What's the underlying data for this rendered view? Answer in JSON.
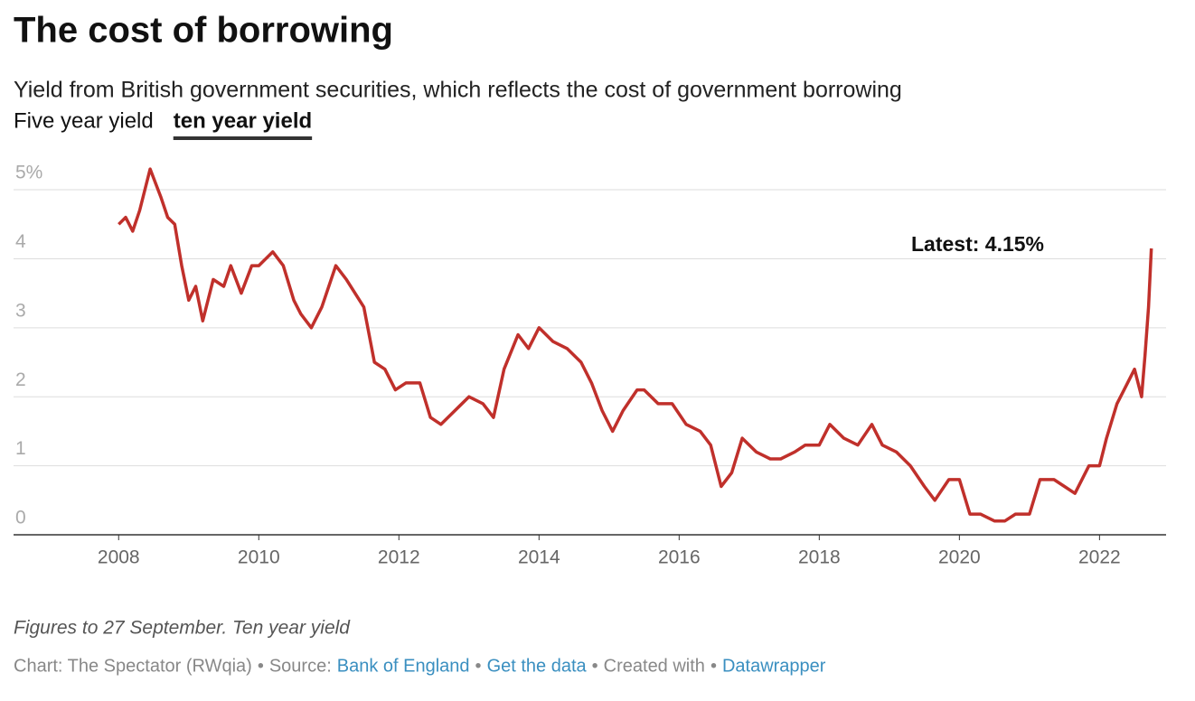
{
  "chart_data": {
    "type": "line",
    "title": "The cost of borrowing",
    "subtitle": "Yield from British government securities, which reflects the cost of government borrowing",
    "toggles": [
      {
        "label": "Five year yield",
        "active": false
      },
      {
        "label": "ten year yield",
        "active": true
      }
    ],
    "annotation": "Latest: 4.15%",
    "note": "Figures to 27 September. Ten year yield",
    "footer": {
      "separator": "•",
      "items": [
        {
          "text": "Chart: The Spectator (RWqia)",
          "link": false
        },
        {
          "text": "Source:",
          "link": false
        },
        {
          "text": "Bank of England",
          "link": true
        },
        {
          "text": "Get the data",
          "link": true
        },
        {
          "text": "Created with",
          "link": false
        },
        {
          "text": "Datawrapper",
          "link": true
        }
      ]
    },
    "xlim": [
      2006.5,
      2022.95
    ],
    "xticks": [
      2008,
      2010,
      2012,
      2014,
      2016,
      2018,
      2020,
      2022
    ],
    "ylim": [
      0,
      5.4
    ],
    "yticks": [
      0,
      1,
      2,
      3,
      4,
      {
        "value": 5,
        "label": "5%"
      }
    ],
    "grid": true,
    "x": [
      2008.0,
      2008.1,
      2008.2,
      2008.3,
      2008.45,
      2008.6,
      2008.7,
      2008.8,
      2008.9,
      2009.0,
      2009.1,
      2009.2,
      2009.35,
      2009.5,
      2009.6,
      2009.75,
      2009.9,
      2010.0,
      2010.2,
      2010.35,
      2010.5,
      2010.6,
      2010.75,
      2010.9,
      2011.1,
      2011.25,
      2011.5,
      2011.65,
      2011.8,
      2011.95,
      2012.1,
      2012.3,
      2012.45,
      2012.6,
      2012.8,
      2013.0,
      2013.2,
      2013.35,
      2013.5,
      2013.7,
      2013.85,
      2014.0,
      2014.2,
      2014.4,
      2014.6,
      2014.75,
      2014.9,
      2015.05,
      2015.2,
      2015.4,
      2015.5,
      2015.7,
      2015.9,
      2016.1,
      2016.3,
      2016.45,
      2016.6,
      2016.75,
      2016.9,
      2017.1,
      2017.3,
      2017.45,
      2017.65,
      2017.8,
      2018.0,
      2018.15,
      2018.35,
      2018.55,
      2018.75,
      2018.9,
      2019.1,
      2019.3,
      2019.5,
      2019.65,
      2019.85,
      2020.0,
      2020.15,
      2020.3,
      2020.5,
      2020.65,
      2020.8,
      2021.0,
      2021.15,
      2021.35,
      2021.5,
      2021.65,
      2021.85,
      2022.0,
      2022.1,
      2022.25,
      2022.4,
      2022.5,
      2022.6,
      2022.65,
      2022.7,
      2022.74
    ],
    "series": [
      {
        "name": "ten year yield",
        "color": "#c0302b",
        "values": [
          4.5,
          4.6,
          4.4,
          4.7,
          5.3,
          4.9,
          4.6,
          4.5,
          3.9,
          3.4,
          3.6,
          3.1,
          3.7,
          3.6,
          3.9,
          3.5,
          3.9,
          3.9,
          4.1,
          3.9,
          3.4,
          3.2,
          3.0,
          3.3,
          3.9,
          3.7,
          3.3,
          2.5,
          2.4,
          2.1,
          2.2,
          2.2,
          1.7,
          1.6,
          1.8,
          2.0,
          1.9,
          1.7,
          2.4,
          2.9,
          2.7,
          3.0,
          2.8,
          2.7,
          2.5,
          2.2,
          1.8,
          1.5,
          1.8,
          2.1,
          2.1,
          1.9,
          1.9,
          1.6,
          1.5,
          1.3,
          0.7,
          0.9,
          1.4,
          1.2,
          1.1,
          1.1,
          1.2,
          1.3,
          1.3,
          1.6,
          1.4,
          1.3,
          1.6,
          1.3,
          1.2,
          1.0,
          0.7,
          0.5,
          0.8,
          0.8,
          0.3,
          0.3,
          0.2,
          0.2,
          0.3,
          0.3,
          0.8,
          0.8,
          0.7,
          0.6,
          1.0,
          1.0,
          1.4,
          1.9,
          2.2,
          2.4,
          2.0,
          2.6,
          3.3,
          4.15
        ]
      }
    ]
  }
}
